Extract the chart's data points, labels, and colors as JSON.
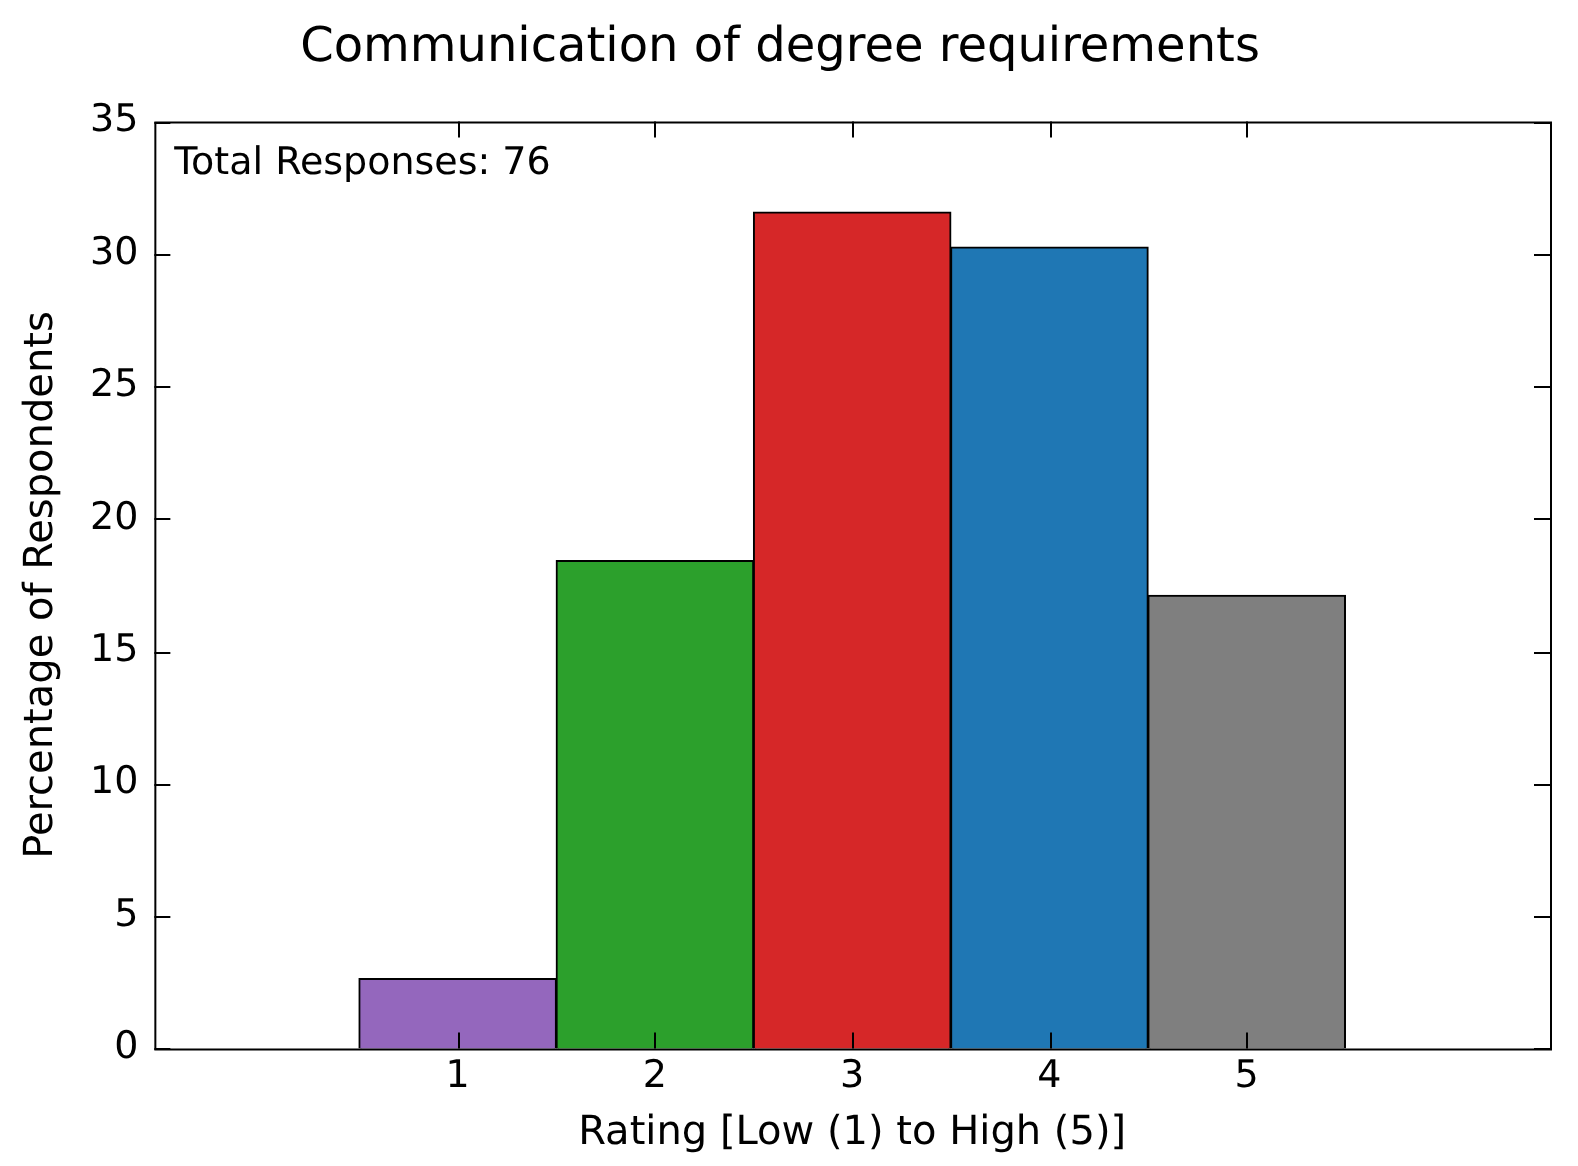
{
  "chart_data": {
    "type": "bar",
    "title": "Communication of degree requirements",
    "xlabel": "Rating [Low (1) to High (5)]",
    "ylabel": "Percentage of Respondents",
    "categories": [
      "1",
      "2",
      "3",
      "4",
      "5"
    ],
    "values": [
      2.63,
      18.42,
      31.58,
      30.26,
      17.11
    ],
    "colors": [
      "#9467bd",
      "#2ca02c",
      "#d62728",
      "#1f77b4",
      "#7f7f7f"
    ],
    "ylim": [
      0,
      35
    ],
    "yticks": [
      0,
      5,
      10,
      15,
      20,
      25,
      30,
      35
    ],
    "annotations": [
      "Total Responses: 76"
    ],
    "grid": false,
    "legend": false
  }
}
